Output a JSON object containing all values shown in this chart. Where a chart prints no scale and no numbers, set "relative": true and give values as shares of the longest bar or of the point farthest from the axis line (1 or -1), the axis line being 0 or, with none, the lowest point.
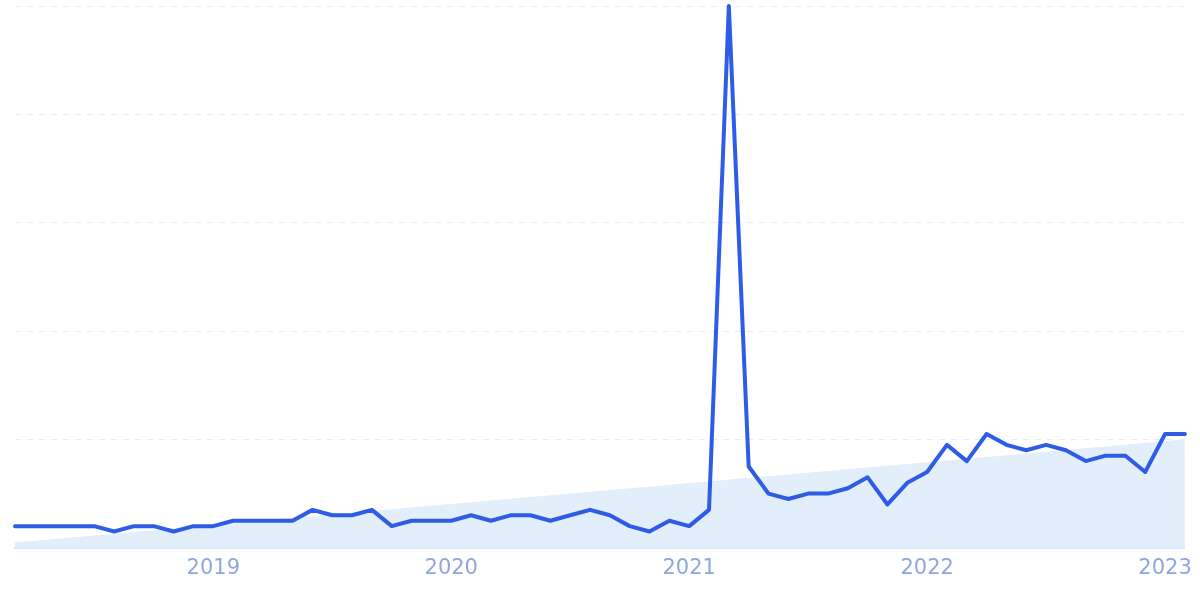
{
  "chart_data": {
    "type": "line",
    "relative": true,
    "grid": "y",
    "legend": false,
    "marker": "none",
    "line_style": "solid",
    "xlim": [
      "2018-03",
      "2023-02"
    ],
    "xticks": [
      "2019",
      "2020",
      "2021",
      "2022",
      "2023"
    ],
    "series": [
      {
        "type": "area",
        "color": "#e3eefb",
        "x": [
          "2018-03",
          "2023-02"
        ],
        "values": [
          0.01,
          0.2
        ]
      },
      {
        "color": "#2e5ce6",
        "x": [
          "2018-03",
          "2018-04",
          "2018-05",
          "2018-06",
          "2018-07",
          "2018-08",
          "2018-09",
          "2018-10",
          "2018-11",
          "2018-12",
          "2019-01",
          "2019-02",
          "2019-03",
          "2019-04",
          "2019-05",
          "2019-06",
          "2019-07",
          "2019-08",
          "2019-09",
          "2019-10",
          "2019-11",
          "2019-12",
          "2020-01",
          "2020-02",
          "2020-03",
          "2020-04",
          "2020-05",
          "2020-06",
          "2020-07",
          "2020-08",
          "2020-09",
          "2020-10",
          "2020-11",
          "2020-12",
          "2021-01",
          "2021-02",
          "2021-03",
          "2021-04",
          "2021-05",
          "2021-06",
          "2021-07",
          "2021-08",
          "2021-09",
          "2021-10",
          "2021-11",
          "2021-12",
          "2022-01",
          "2022-02",
          "2022-03",
          "2022-04",
          "2022-05",
          "2022-06",
          "2022-07",
          "2022-08",
          "2022-09",
          "2022-10",
          "2022-11",
          "2022-12",
          "2023-01",
          "2023-02"
        ],
        "values": [
          0.04,
          0.04,
          0.04,
          0.04,
          0.04,
          0.03,
          0.04,
          0.04,
          0.03,
          0.04,
          0.04,
          0.05,
          0.05,
          0.05,
          0.05,
          0.07,
          0.06,
          0.06,
          0.07,
          0.04,
          0.05,
          0.05,
          0.05,
          0.06,
          0.05,
          0.06,
          0.06,
          0.05,
          0.06,
          0.07,
          0.06,
          0.04,
          0.03,
          0.05,
          0.04,
          0.07,
          1,
          0.15,
          0.1,
          0.09,
          0.1,
          0.1,
          0.11,
          0.13,
          0.08,
          0.12,
          0.14,
          0.19,
          0.16,
          0.21,
          0.19,
          0.18,
          0.19,
          0.18,
          0.16,
          0.17,
          0.17,
          0.14,
          0.21,
          0.21
        ]
      }
    ]
  }
}
